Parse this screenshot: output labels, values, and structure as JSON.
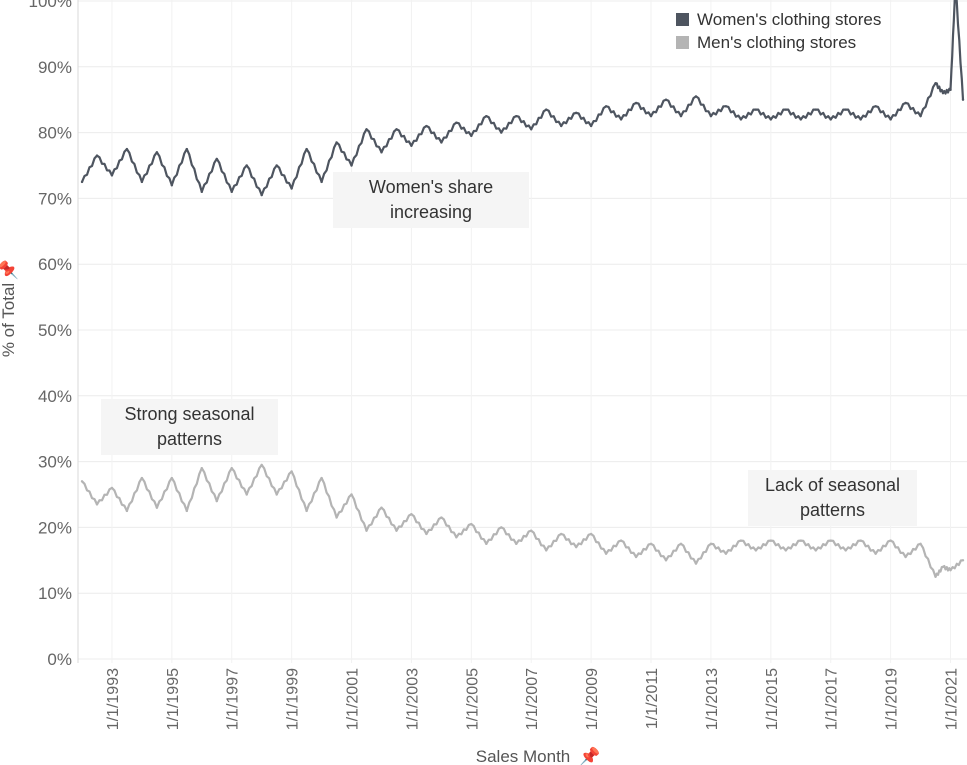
{
  "chart_data": {
    "type": "line",
    "xlabel": "Sales Month",
    "ylabel": "% of Total",
    "ylim": [
      0,
      100
    ],
    "y_ticks": [
      "0%",
      "10%",
      "20%",
      "30%",
      "40%",
      "50%",
      "60%",
      "70%",
      "80%",
      "90%",
      "100%"
    ],
    "x_range": [
      "1992-01",
      "2021-06"
    ],
    "x_ticks": [
      "1/1/1993",
      "1/1/1995",
      "1/1/1997",
      "1/1/1999",
      "1/1/2001",
      "1/1/2003",
      "1/1/2005",
      "1/1/2007",
      "1/1/2009",
      "1/1/2011",
      "1/1/2013",
      "1/1/2015",
      "1/1/2017",
      "1/1/2019",
      "1/1/2021"
    ],
    "grid": true,
    "legend_position": "top-right",
    "series": [
      {
        "name": "Women's clothing stores",
        "color": "#4e5560",
        "points": [
          [
            "1992-01",
            72.5
          ],
          [
            "1992-07",
            76.5
          ],
          [
            "1993-01",
            73.5
          ],
          [
            "1993-07",
            77.5
          ],
          [
            "1994-01",
            72.5
          ],
          [
            "1994-07",
            77.0
          ],
          [
            "1995-01",
            72.0
          ],
          [
            "1995-07",
            77.5
          ],
          [
            "1996-01",
            71.0
          ],
          [
            "1996-07",
            76.0
          ],
          [
            "1997-01",
            71.0
          ],
          [
            "1997-07",
            75.0
          ],
          [
            "1998-01",
            70.5
          ],
          [
            "1998-07",
            75.0
          ],
          [
            "1999-01",
            71.5
          ],
          [
            "1999-07",
            77.5
          ],
          [
            "2000-01",
            72.5
          ],
          [
            "2000-07",
            78.5
          ],
          [
            "2001-01",
            75.0
          ],
          [
            "2001-07",
            80.5
          ],
          [
            "2002-01",
            77.0
          ],
          [
            "2002-07",
            80.5
          ],
          [
            "2003-01",
            78.0
          ],
          [
            "2003-07",
            81.0
          ],
          [
            "2004-01",
            78.5
          ],
          [
            "2004-07",
            81.5
          ],
          [
            "2005-01",
            79.5
          ],
          [
            "2005-07",
            82.5
          ],
          [
            "2006-01",
            80.0
          ],
          [
            "2006-07",
            82.5
          ],
          [
            "2007-01",
            80.5
          ],
          [
            "2007-07",
            83.5
          ],
          [
            "2008-01",
            81.0
          ],
          [
            "2008-07",
            83.0
          ],
          [
            "2009-01",
            81.0
          ],
          [
            "2009-07",
            84.0
          ],
          [
            "2010-01",
            82.0
          ],
          [
            "2010-07",
            84.5
          ],
          [
            "2011-01",
            82.5
          ],
          [
            "2011-07",
            85.0
          ],
          [
            "2012-01",
            82.5
          ],
          [
            "2012-07",
            85.5
          ],
          [
            "2013-01",
            82.5
          ],
          [
            "2013-07",
            84.0
          ],
          [
            "2014-01",
            82.0
          ],
          [
            "2014-07",
            83.5
          ],
          [
            "2015-01",
            82.0
          ],
          [
            "2015-07",
            83.5
          ],
          [
            "2016-01",
            82.0
          ],
          [
            "2016-07",
            83.5
          ],
          [
            "2017-01",
            82.0
          ],
          [
            "2017-07",
            83.5
          ],
          [
            "2018-01",
            82.0
          ],
          [
            "2018-07",
            84.0
          ],
          [
            "2019-01",
            82.0
          ],
          [
            "2019-07",
            84.5
          ],
          [
            "2020-01",
            82.5
          ],
          [
            "2020-07",
            87.5
          ],
          [
            "2020-10",
            86.0
          ],
          [
            "2021-01",
            86.5
          ],
          [
            "2021-03",
            102.5
          ],
          [
            "2021-06",
            85.0
          ]
        ]
      },
      {
        "name": "Men's clothing stores",
        "color": "#b4b4b4",
        "points": [
          [
            "1992-01",
            27.0
          ],
          [
            "1992-07",
            23.5
          ],
          [
            "1993-01",
            26.0
          ],
          [
            "1993-07",
            22.5
          ],
          [
            "1994-01",
            27.5
          ],
          [
            "1994-07",
            23.0
          ],
          [
            "1995-01",
            27.5
          ],
          [
            "1995-07",
            22.5
          ],
          [
            "1996-01",
            29.0
          ],
          [
            "1996-07",
            24.0
          ],
          [
            "1997-01",
            29.0
          ],
          [
            "1997-07",
            25.0
          ],
          [
            "1998-01",
            29.5
          ],
          [
            "1998-07",
            25.0
          ],
          [
            "1999-01",
            28.5
          ],
          [
            "1999-07",
            22.5
          ],
          [
            "2000-01",
            27.5
          ],
          [
            "2000-07",
            21.5
          ],
          [
            "2001-01",
            25.0
          ],
          [
            "2001-07",
            19.5
          ],
          [
            "2002-01",
            23.0
          ],
          [
            "2002-07",
            19.5
          ],
          [
            "2003-01",
            22.0
          ],
          [
            "2003-07",
            19.0
          ],
          [
            "2004-01",
            21.5
          ],
          [
            "2004-07",
            18.5
          ],
          [
            "2005-01",
            20.5
          ],
          [
            "2005-07",
            17.5
          ],
          [
            "2006-01",
            20.0
          ],
          [
            "2006-07",
            17.5
          ],
          [
            "2007-01",
            19.5
          ],
          [
            "2007-07",
            16.5
          ],
          [
            "2008-01",
            19.0
          ],
          [
            "2008-07",
            17.0
          ],
          [
            "2009-01",
            19.0
          ],
          [
            "2009-07",
            16.0
          ],
          [
            "2010-01",
            18.0
          ],
          [
            "2010-07",
            15.5
          ],
          [
            "2011-01",
            17.5
          ],
          [
            "2011-07",
            15.0
          ],
          [
            "2012-01",
            17.5
          ],
          [
            "2012-07",
            14.5
          ],
          [
            "2013-01",
            17.5
          ],
          [
            "2013-07",
            16.0
          ],
          [
            "2014-01",
            18.0
          ],
          [
            "2014-07",
            16.5
          ],
          [
            "2015-01",
            18.0
          ],
          [
            "2015-07",
            16.5
          ],
          [
            "2016-01",
            18.0
          ],
          [
            "2016-07",
            16.5
          ],
          [
            "2017-01",
            18.0
          ],
          [
            "2017-07",
            16.5
          ],
          [
            "2018-01",
            18.0
          ],
          [
            "2018-07",
            16.0
          ],
          [
            "2019-01",
            18.0
          ],
          [
            "2019-07",
            15.5
          ],
          [
            "2020-01",
            17.5
          ],
          [
            "2020-07",
            12.5
          ],
          [
            "2020-10",
            14.0
          ],
          [
            "2021-01",
            13.5
          ],
          [
            "2021-06",
            15.0
          ]
        ]
      }
    ],
    "annotations": [
      {
        "lines": [
          "Women's share",
          "increasing"
        ]
      },
      {
        "lines": [
          "Strong seasonal",
          "patterns"
        ]
      },
      {
        "lines": [
          "Lack of seasonal",
          "patterns"
        ]
      }
    ]
  }
}
